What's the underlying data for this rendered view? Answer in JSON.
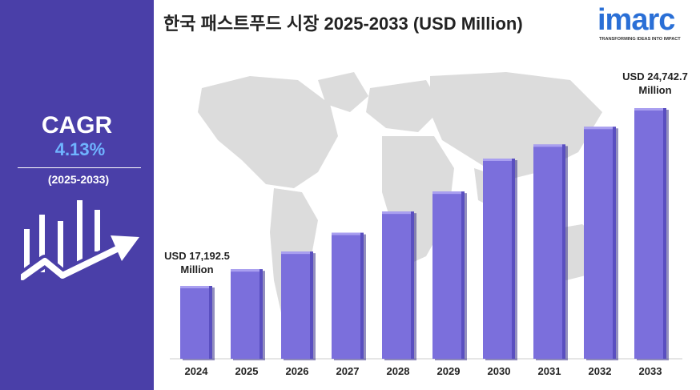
{
  "sidebar": {
    "cagr_label": "CAGR",
    "cagr_value": "4.13%",
    "cagr_period": "(2025-2033)"
  },
  "title": "한국 패스트푸드 시장 2025-2033 (USD Million)",
  "logo": {
    "word": "imarc",
    "tagline": "TRANSFORMING IDEAS INTO IMPACT"
  },
  "colors": {
    "sidebar": "#4a3fa8",
    "bar": "#7b6fdc",
    "bar_shadow": "#3a338a",
    "cagr_value": "#6fb4ff",
    "logo": "#2a6fd6"
  },
  "annotations": {
    "first": {
      "line1": "USD 17,192.5",
      "line2": "Million"
    },
    "last": {
      "line1": "USD 24,742.7",
      "line2": "Million"
    }
  },
  "chart_data": {
    "type": "bar",
    "title": "한국 패스트푸드 시장 2025-2033 (USD Million)",
    "categories": [
      "2024",
      "2025",
      "2026",
      "2027",
      "2028",
      "2029",
      "2030",
      "2031",
      "2032",
      "2033"
    ],
    "values": [
      17192.5,
      17900,
      18650,
      19450,
      20350,
      21200,
      22600,
      23200,
      23950,
      24742.7
    ],
    "xlabel": "",
    "ylabel": "",
    "grid": false
  }
}
